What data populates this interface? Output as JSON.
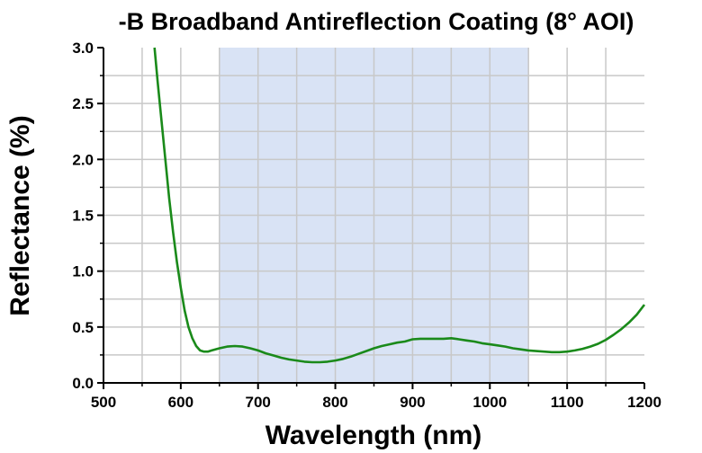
{
  "chart_data": {
    "type": "line",
    "title": "-B Broadband Antireflection Coating (8° AOI)",
    "xlabel": "Wavelength (nm)",
    "ylabel": "Reflectance (%)",
    "xlim": [
      500,
      1200
    ],
    "ylim": [
      0,
      3.0
    ],
    "x_ticks": [
      500,
      600,
      700,
      800,
      900,
      1000,
      1100,
      1200
    ],
    "x_tick_labels": [
      "500",
      "600",
      "700",
      "800",
      "900",
      "1000",
      "1100",
      "1200"
    ],
    "y_ticks": [
      0.0,
      0.5,
      1.0,
      1.5,
      2.0,
      2.5,
      3.0
    ],
    "y_tick_labels": [
      "0.0",
      "0.5",
      "1.0",
      "1.5",
      "2.0",
      "2.5",
      "3.0"
    ],
    "grid": true,
    "highlight_band": [
      650,
      1050
    ],
    "colors": {
      "line": "#1a8a1a",
      "band": "#d9e3f5",
      "grid": "#c8c8c8",
      "axis": "#000000"
    },
    "series": [
      {
        "x": [
          566,
          570,
          575,
          580,
          585,
          590,
          595,
          600,
          605,
          610,
          615,
          620,
          625,
          630,
          635,
          640,
          650,
          660,
          670,
          680,
          690,
          700,
          710,
          720,
          730,
          740,
          750,
          760,
          770,
          780,
          790,
          800,
          810,
          820,
          830,
          840,
          850,
          860,
          870,
          880,
          890,
          900,
          910,
          920,
          930,
          940,
          950,
          960,
          970,
          980,
          990,
          1000,
          1010,
          1020,
          1030,
          1040,
          1050,
          1060,
          1070,
          1080,
          1090,
          1100,
          1110,
          1120,
          1130,
          1140,
          1150,
          1160,
          1170,
          1180,
          1190,
          1200
        ],
        "y": [
          3.0,
          2.7,
          2.35,
          2.0,
          1.65,
          1.35,
          1.08,
          0.85,
          0.65,
          0.5,
          0.4,
          0.33,
          0.29,
          0.28,
          0.28,
          0.29,
          0.31,
          0.325,
          0.33,
          0.325,
          0.31,
          0.29,
          0.265,
          0.245,
          0.225,
          0.21,
          0.2,
          0.19,
          0.185,
          0.185,
          0.19,
          0.2,
          0.215,
          0.235,
          0.26,
          0.285,
          0.31,
          0.33,
          0.345,
          0.36,
          0.37,
          0.39,
          0.395,
          0.395,
          0.395,
          0.395,
          0.4,
          0.39,
          0.38,
          0.37,
          0.355,
          0.345,
          0.335,
          0.325,
          0.31,
          0.3,
          0.29,
          0.285,
          0.28,
          0.275,
          0.275,
          0.28,
          0.29,
          0.305,
          0.325,
          0.35,
          0.385,
          0.43,
          0.48,
          0.54,
          0.61,
          0.7
        ]
      }
    ]
  }
}
